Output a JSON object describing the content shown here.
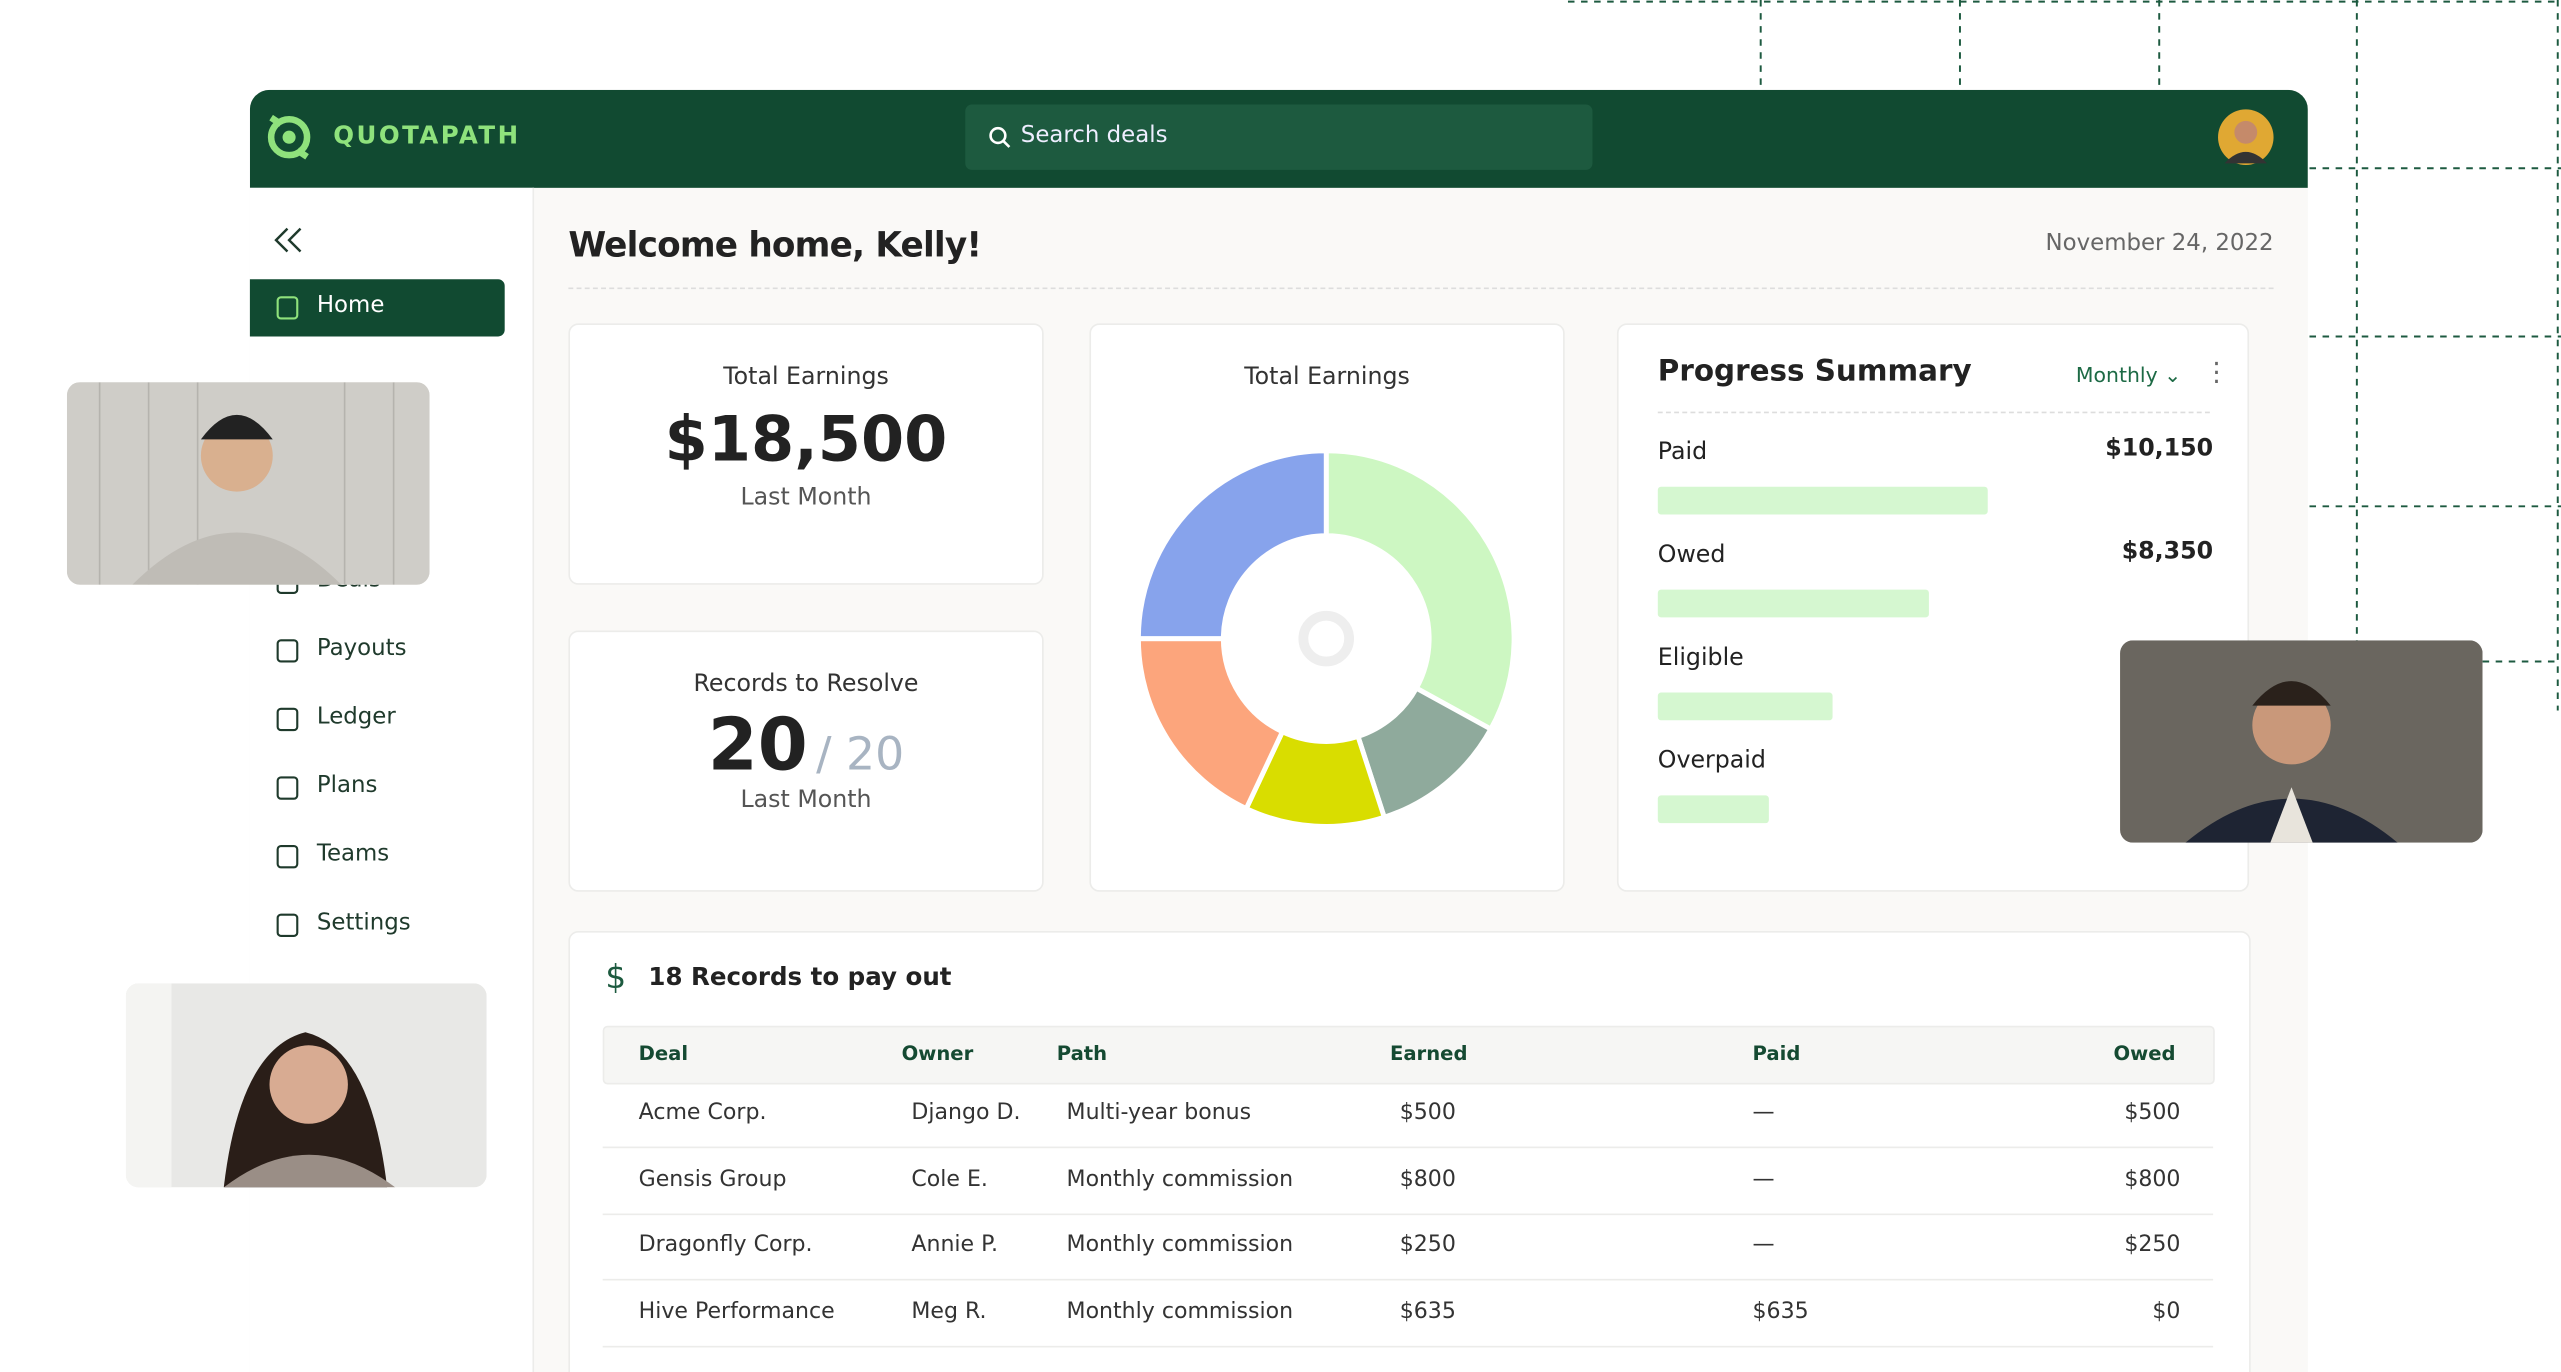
{
  "header": {
    "brand": "QUOTAPATH",
    "search_placeholder": "Search deals"
  },
  "sidebar": {
    "items": [
      "Home",
      "Deals",
      "Payouts",
      "Ledger",
      "Plans",
      "Teams",
      "Settings"
    ],
    "active": 0
  },
  "main": {
    "welcome": "Welcome home, Kelly!",
    "date": "November 24, 2022"
  },
  "earnings_card": {
    "title": "Total Earnings",
    "value": "$18,500",
    "period": "Last Month"
  },
  "records_card": {
    "title": "Records to Resolve",
    "value": "20",
    "total": "/ 20",
    "period": "Last Month"
  },
  "donut": {
    "title": "Total Earnings",
    "values": [
      33,
      12,
      12,
      18,
      25
    ],
    "colors": [
      "#cdf7c2",
      "#8faa9c",
      "#d9dd00",
      "#fca57c",
      "#87a3ec"
    ]
  },
  "progress": {
    "title": "Progress Summary",
    "period": "Monthly",
    "xlim": [
      0,
      17000
    ],
    "color": "#d5f7d0",
    "items": [
      {
        "name": "Paid",
        "value": 10150,
        "value_label": "$10,150"
      },
      {
        "name": "Owed",
        "value": 8350,
        "value_label": "$8,350"
      },
      {
        "name": "Eligible",
        "value": 5400
      },
      {
        "name": "Overpaid",
        "value": 3400
      }
    ]
  },
  "table": {
    "title": "18 Records to pay out",
    "columns": [
      "Deal",
      "Owner",
      "Path",
      "Earned",
      "Paid",
      "Owed"
    ],
    "rows": [
      [
        "Acme Corp.",
        "Django D.",
        "Multi-year bonus",
        "$500",
        "—",
        "$500"
      ],
      [
        "Gensis Group",
        "Cole E.",
        "Monthly commission",
        "$800",
        "—",
        "$800"
      ],
      [
        "Dragonfly Corp.",
        "Annie P.",
        "Monthly commission",
        "$250",
        "—",
        "$250"
      ],
      [
        "Hive Performance",
        "Meg R.",
        "Monthly commission",
        "$635",
        "$635",
        "$0"
      ]
    ]
  }
}
